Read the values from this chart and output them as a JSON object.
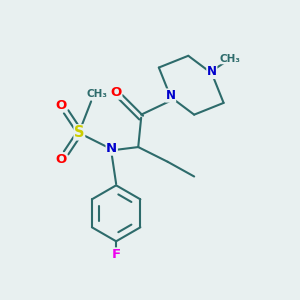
{
  "background_color": "#e8f0f0",
  "bond_color": "#2d6b6b",
  "atom_colors": {
    "N": "#0000cc",
    "O": "#ff0000",
    "S": "#cccc00",
    "F": "#ee00ee",
    "C": "#2d6b6b"
  },
  "figsize": [
    3.0,
    3.0
  ],
  "dpi": 100
}
